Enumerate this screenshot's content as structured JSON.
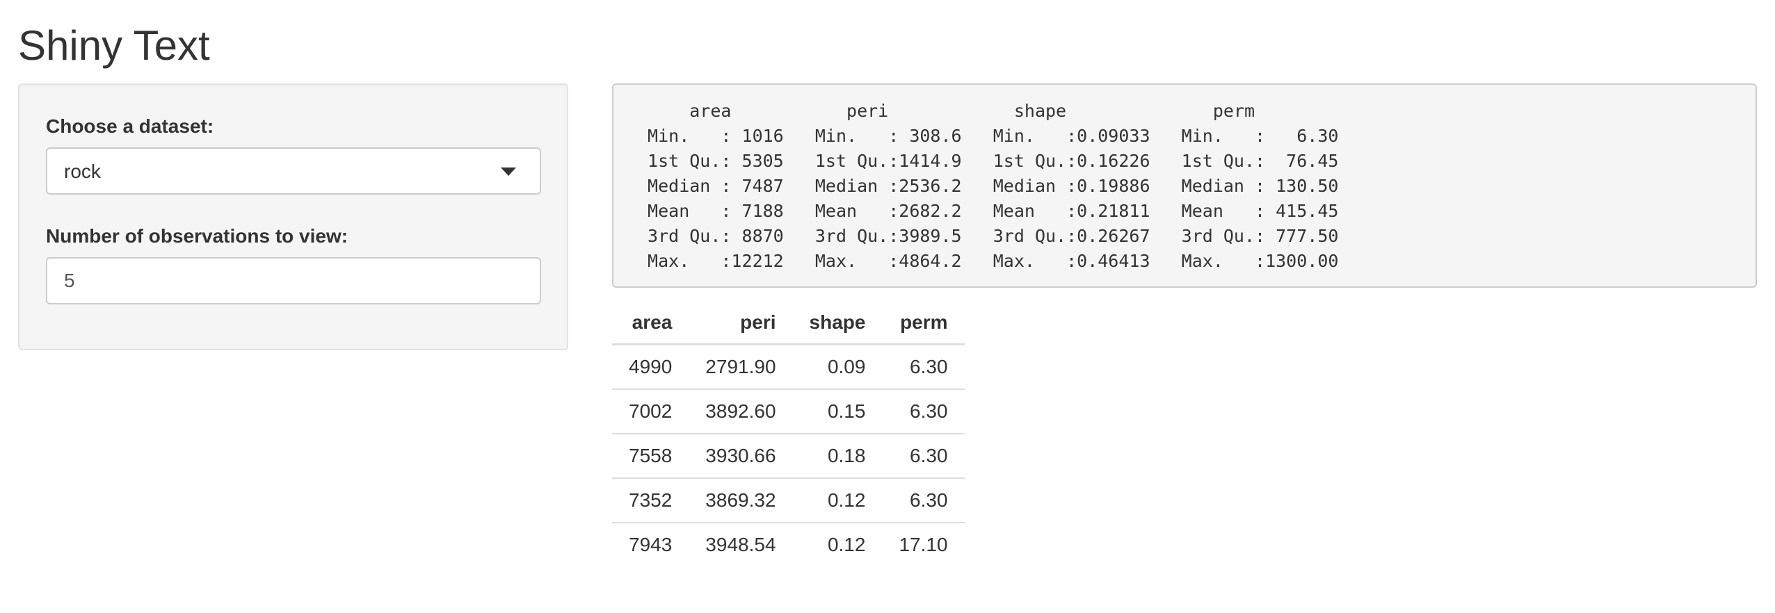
{
  "page": {
    "title": "Shiny Text"
  },
  "sidebar": {
    "dataset_label": "Choose a dataset:",
    "dataset_value": "rock",
    "obs_label": "Number of observations to view:",
    "obs_value": "5"
  },
  "summary": {
    "text": "     area           peri            shape              perm      \n Min.   : 1016   Min.   : 308.6   Min.   :0.09033   Min.   :   6.30  \n 1st Qu.: 5305   1st Qu.:1414.9   1st Qu.:0.16226   1st Qu.:  76.45  \n Median : 7487   Median :2536.2   Median :0.19886   Median : 130.50  \n Mean   : 7188   Mean   :2682.2   Mean   :0.21811   Mean   : 415.45  \n 3rd Qu.: 8870   3rd Qu.:3989.5   3rd Qu.:0.26267   3rd Qu.: 777.50  \n Max.   :12212   Max.   :4864.2   Max.   :0.46413   Max.   :1300.00  "
  },
  "table": {
    "headers": [
      "area",
      "peri",
      "shape",
      "perm"
    ],
    "rows": [
      [
        "4990",
        "2791.90",
        "0.09",
        "6.30"
      ],
      [
        "7002",
        "3892.60",
        "0.15",
        "6.30"
      ],
      [
        "7558",
        "3930.66",
        "0.18",
        "6.30"
      ],
      [
        "7352",
        "3869.32",
        "0.12",
        "6.30"
      ],
      [
        "7943",
        "3948.54",
        "0.12",
        "17.10"
      ]
    ]
  }
}
